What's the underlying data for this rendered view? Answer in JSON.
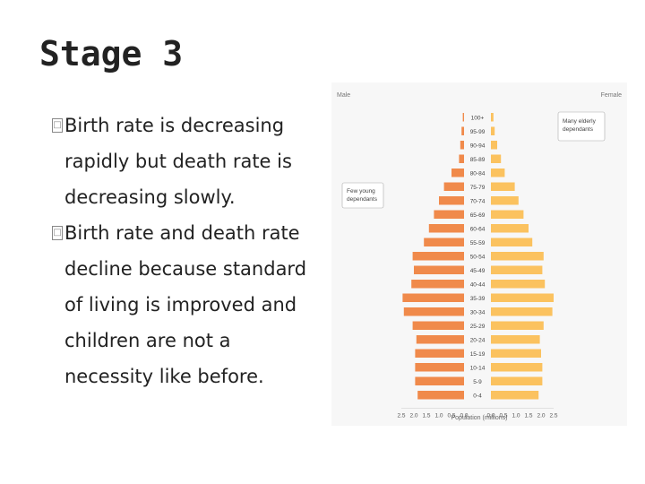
{
  "slide": {
    "title": "Stage 3",
    "bullets": [
      {
        "mark": "□",
        "text": "Birth rate is decreasing rapidly but death rate is decreasing slowly."
      },
      {
        "mark": "□",
        "text": " Birth rate and death rate decline because standard of living is improved and children are not a necessity like before."
      }
    ]
  },
  "chart_data": {
    "type": "bar",
    "orientation": "horizontal-population-pyramid",
    "male_label": "Male",
    "female_label": "Female",
    "xlabel": "Population (millions)",
    "annotations": [
      "Few young dependants",
      "Many elderly dependants"
    ],
    "x_ticks": [
      "2.5",
      "2.0",
      "1.5",
      "1.0",
      "0.5",
      "0.0",
      "0.0",
      "0.5",
      "1.0",
      "1.5",
      "2.0",
      "2.5"
    ],
    "xlim": [
      0,
      2.5
    ],
    "categories": [
      "100+",
      "95-99",
      "90-94",
      "85-89",
      "80-84",
      "75-79",
      "70-74",
      "65-69",
      "60-64",
      "55-59",
      "50-54",
      "45-49",
      "40-44",
      "35-39",
      "30-34",
      "25-29",
      "20-24",
      "15-19",
      "10-14",
      "5-9",
      "0-4"
    ],
    "series": [
      {
        "name": "Male",
        "color": "#f08a4b",
        "values": [
          0.05,
          0.1,
          0.15,
          0.2,
          0.5,
          0.8,
          1.0,
          1.2,
          1.4,
          1.6,
          2.05,
          2.0,
          2.1,
          2.45,
          2.4,
          2.05,
          1.9,
          1.95,
          1.95,
          1.95,
          1.85
        ]
      },
      {
        "name": "Female",
        "color": "#fbc25f",
        "values": [
          0.1,
          0.15,
          0.25,
          0.4,
          0.55,
          0.95,
          1.1,
          1.3,
          1.5,
          1.65,
          2.1,
          2.05,
          2.15,
          2.5,
          2.45,
          2.1,
          1.95,
          2.0,
          2.05,
          2.05,
          1.9
        ]
      }
    ]
  }
}
